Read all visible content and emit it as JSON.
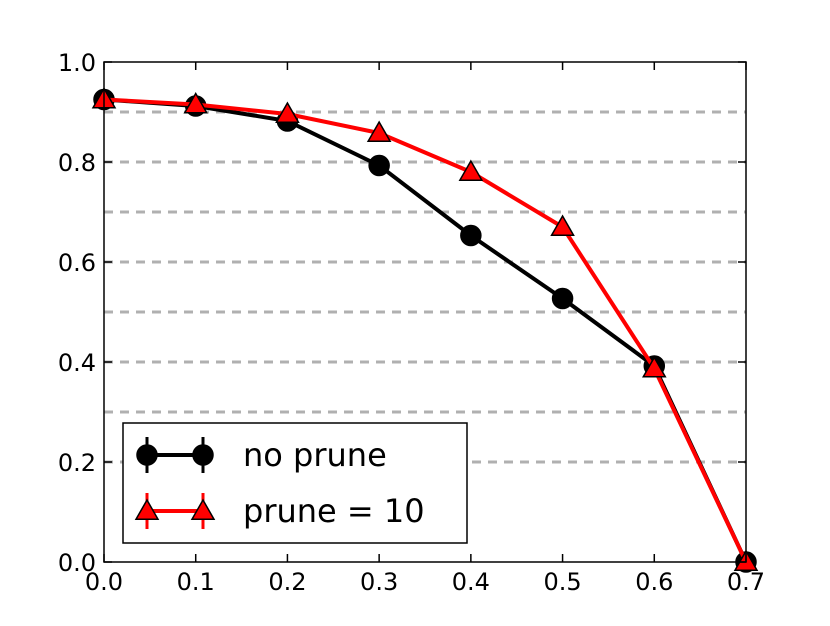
{
  "chart_data": {
    "type": "line",
    "title": "",
    "xlabel": "",
    "ylabel": "",
    "xlim": [
      0.0,
      0.7
    ],
    "ylim": [
      0.0,
      1.0
    ],
    "x_ticks": [
      "0.0",
      "0.1",
      "0.2",
      "0.3",
      "0.4",
      "0.5",
      "0.6",
      "0.7"
    ],
    "y_ticks": [
      "0.0",
      "0.2",
      "0.4",
      "0.6",
      "0.8",
      "1.0"
    ],
    "grid": {
      "axis": "y",
      "style": "dashed",
      "color": "#b0b0b0",
      "values": [
        0.2,
        0.3,
        0.4,
        0.5,
        0.6,
        0.7,
        0.8,
        0.9
      ]
    },
    "legend_position": "lower-left",
    "series": [
      {
        "name": "no prune",
        "color": "#000000",
        "marker": "circle",
        "x": [
          0.0,
          0.1,
          0.2,
          0.3,
          0.4,
          0.5,
          0.6,
          0.7
        ],
        "y": [
          0.925,
          0.912,
          0.882,
          0.793,
          0.653,
          0.527,
          0.392,
          0.0
        ]
      },
      {
        "name": "prune = 10",
        "color": "#ff0000",
        "marker": "triangle",
        "x": [
          0.0,
          0.1,
          0.2,
          0.3,
          0.4,
          0.5,
          0.6,
          0.7
        ],
        "y": [
          0.925,
          0.915,
          0.896,
          0.858,
          0.78,
          0.67,
          0.387,
          0.0
        ]
      }
    ]
  }
}
